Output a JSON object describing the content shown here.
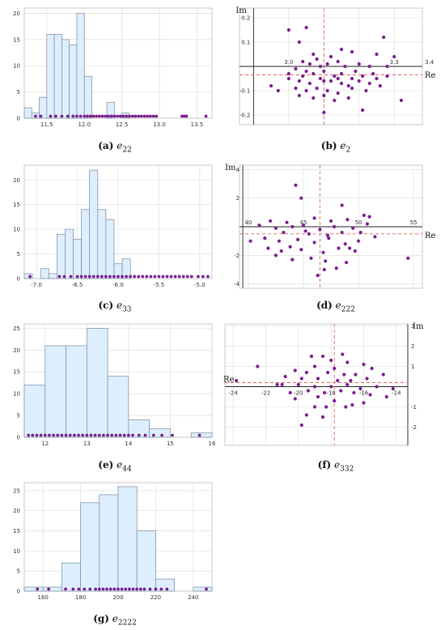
{
  "captions": [
    {
      "letter": "(a)",
      "var": "e",
      "sub": "22"
    },
    {
      "letter": "(b)",
      "var": "e",
      "sub": "2"
    },
    {
      "letter": "(c)",
      "var": "e",
      "sub": "33"
    },
    {
      "letter": "(d)",
      "var": "e",
      "sub": "222"
    },
    {
      "letter": "(e)",
      "var": "e",
      "sub": "44"
    },
    {
      "letter": "(f)",
      "var": "e",
      "sub": "332"
    },
    {
      "letter": "(g)",
      "var": "e",
      "sub": "2222"
    }
  ],
  "chart_data": [
    {
      "id": "a",
      "type": "bar",
      "subtype": "histogram",
      "bin_start": 11.2,
      "bin_width": 0.1,
      "counts": [
        2,
        1,
        4,
        16,
        16,
        15,
        14,
        20,
        8,
        0,
        0,
        3,
        0,
        1
      ],
      "xlim": [
        11.2,
        13.7
      ],
      "ylim": [
        0,
        21
      ],
      "xticks": [
        11.5,
        12.0,
        12.5,
        13.0,
        13.5
      ],
      "xtick_labels": [
        "11.5",
        "12.0",
        "12.5",
        "13.0",
        "13.5"
      ],
      "yticks": [
        0,
        5,
        10,
        15,
        20
      ],
      "xlabel": "",
      "ylabel": "",
      "rug": [
        11.35,
        11.42,
        11.55,
        11.62,
        11.7,
        11.78,
        11.85,
        11.9,
        11.95,
        12.0,
        12.04,
        12.08,
        12.12,
        12.16,
        12.2,
        12.24,
        12.28,
        12.32,
        12.36,
        12.4,
        12.44,
        12.48,
        12.52,
        12.56,
        12.6,
        12.64,
        12.68,
        12.72,
        12.76,
        12.8,
        12.84,
        12.88,
        12.92,
        12.96,
        13.3,
        13.33,
        13.36,
        13.62
      ]
    },
    {
      "id": "b",
      "type": "scatter",
      "xlabel": "Re",
      "ylabel": "Im",
      "xlim": [
        2.86,
        3.38
      ],
      "ylim": [
        -0.24,
        0.24
      ],
      "xticks": [
        3.0,
        3.1,
        3.2,
        3.3,
        3.4
      ],
      "xtick_labels": [
        "3.0",
        "",
        "",
        "3.3",
        "3.4"
      ],
      "yticks": [
        -0.2,
        -0.1,
        0.1,
        0.2
      ],
      "ytick_labels": [
        "-0.2",
        "-0.1",
        "0.1",
        "0.2"
      ],
      "mean_x": 3.1,
      "mean_y": -0.035,
      "points": [
        [
          3.0,
          0.15
        ],
        [
          3.05,
          0.16
        ],
        [
          3.03,
          0.1
        ],
        [
          3.08,
          0.03
        ],
        [
          3.12,
          0.04
        ],
        [
          3.18,
          0.06
        ],
        [
          3.25,
          0.05
        ],
        [
          3.27,
          0.12
        ],
        [
          3.3,
          0.04
        ],
        [
          3.04,
          0.02
        ],
        [
          3.06,
          0.01
        ],
        [
          3.09,
          0.0
        ],
        [
          3.11,
          0.01
        ],
        [
          3.14,
          0.02
        ],
        [
          3.16,
          0.0
        ],
        [
          3.2,
          0.01
        ],
        [
          3.23,
          0.0
        ],
        [
          3.28,
          0.0
        ],
        [
          3.02,
          -0.01
        ],
        [
          3.05,
          -0.02
        ],
        [
          3.07,
          -0.03
        ],
        [
          3.1,
          -0.02
        ],
        [
          3.13,
          -0.04
        ],
        [
          3.15,
          -0.03
        ],
        [
          3.18,
          -0.05
        ],
        [
          3.21,
          -0.04
        ],
        [
          3.24,
          -0.03
        ],
        [
          3.0,
          -0.05
        ],
        [
          3.03,
          -0.06
        ],
        [
          3.06,
          -0.07
        ],
        [
          3.09,
          -0.05
        ],
        [
          3.12,
          -0.06
        ],
        [
          3.15,
          -0.07
        ],
        [
          3.17,
          -0.08
        ],
        [
          3.2,
          -0.06
        ],
        [
          3.23,
          -0.07
        ],
        [
          2.95,
          -0.08
        ],
        [
          2.97,
          -0.1
        ],
        [
          3.02,
          -0.09
        ],
        [
          3.05,
          -0.1
        ],
        [
          3.08,
          -0.09
        ],
        [
          3.11,
          -0.1
        ],
        [
          3.14,
          -0.11
        ],
        [
          3.18,
          -0.09
        ],
        [
          3.22,
          -0.1
        ],
        [
          3.03,
          -0.12
        ],
        [
          3.07,
          -0.13
        ],
        [
          3.1,
          -0.12
        ],
        [
          3.13,
          -0.14
        ],
        [
          3.17,
          -0.13
        ],
        [
          3.1,
          -0.19
        ],
        [
          3.21,
          -0.18
        ],
        [
          3.32,
          -0.14
        ],
        [
          3.26,
          -0.08
        ],
        [
          3.0,
          -0.03
        ],
        [
          3.04,
          -0.04
        ],
        [
          3.1,
          -0.06
        ],
        [
          3.14,
          -0.05
        ],
        [
          3.19,
          -0.02
        ],
        [
          3.25,
          -0.05
        ],
        [
          3.28,
          -0.04
        ],
        [
          3.07,
          0.05
        ],
        [
          3.15,
          0.07
        ]
      ]
    },
    {
      "id": "c",
      "type": "bar",
      "subtype": "histogram",
      "bin_start": -7.15,
      "bin_width": 0.1,
      "counts": [
        1,
        0,
        2,
        1,
        9,
        10,
        8,
        14,
        22,
        14,
        12,
        3,
        4
      ],
      "xlim": [
        -7.15,
        -4.85
      ],
      "ylim": [
        0,
        23
      ],
      "xticks": [
        -7.0,
        -6.5,
        -6.0,
        -5.5,
        -5.0
      ],
      "xtick_labels": [
        "-7.0",
        "-6.5",
        "-6.0",
        "-5.5",
        "-5.0"
      ],
      "yticks": [
        0,
        5,
        10,
        15,
        20
      ],
      "xlabel": "",
      "ylabel": "",
      "rug": [
        -7.08,
        -6.72,
        -6.66,
        -6.58,
        -6.5,
        -6.45,
        -6.4,
        -6.35,
        -6.3,
        -6.25,
        -6.2,
        -6.15,
        -6.1,
        -6.05,
        -6.0,
        -5.95,
        -5.9,
        -5.85,
        -5.8,
        -5.75,
        -5.7,
        -5.65,
        -5.6,
        -5.55,
        -5.5,
        -5.45,
        -5.4,
        -5.35,
        -5.3,
        -5.25,
        -5.2,
        -5.15,
        -5.1,
        -5.02,
        -4.96,
        -4.9
      ]
    },
    {
      "id": "d",
      "type": "scatter",
      "xlabel": "Re",
      "ylabel": "Im",
      "xlim": [
        39.2,
        55.8
      ],
      "ylim": [
        -4.3,
        4.3
      ],
      "xticks": [
        40,
        45,
        50,
        55
      ],
      "xtick_labels": [
        "40",
        "45",
        "50",
        "55"
      ],
      "yticks": [
        -4,
        -2,
        2,
        4
      ],
      "ytick_labels": [
        "-4",
        "-2",
        "2",
        "4"
      ],
      "mean_x": 46.5,
      "mean_y": -0.5,
      "points": [
        [
          44.3,
          2.9
        ],
        [
          44.8,
          2.0
        ],
        [
          48.5,
          1.5
        ],
        [
          50.5,
          0.8
        ],
        [
          51.0,
          0.7
        ],
        [
          42.0,
          0.4
        ],
        [
          43.5,
          0.3
        ],
        [
          46.0,
          0.6
        ],
        [
          47.5,
          0.4
        ],
        [
          49.0,
          0.5
        ],
        [
          41.0,
          0.1
        ],
        [
          42.5,
          -0.1
        ],
        [
          44.0,
          0.0
        ],
        [
          45.0,
          0.1
        ],
        [
          46.5,
          -0.2
        ],
        [
          47.8,
          0.0
        ],
        [
          49.5,
          -0.1
        ],
        [
          50.8,
          0.2
        ],
        [
          43.2,
          -0.4
        ],
        [
          45.5,
          -0.5
        ],
        [
          40.2,
          -1.0
        ],
        [
          41.5,
          -0.8
        ],
        [
          42.8,
          -1.0
        ],
        [
          44.5,
          -0.9
        ],
        [
          46.0,
          -1.1
        ],
        [
          47.3,
          -0.8
        ],
        [
          48.8,
          -1.2
        ],
        [
          50.0,
          -1.0
        ],
        [
          51.5,
          -0.7
        ],
        [
          43.8,
          -1.4
        ],
        [
          41.8,
          -1.5
        ],
        [
          43.0,
          -1.7
        ],
        [
          44.8,
          -1.6
        ],
        [
          46.8,
          -1.8
        ],
        [
          48.2,
          -1.5
        ],
        [
          49.7,
          -1.7
        ],
        [
          45.7,
          -2.2
        ],
        [
          47.0,
          -2.4
        ],
        [
          48.9,
          -2.5
        ],
        [
          44.0,
          -2.3
        ],
        [
          42.5,
          -2.0
        ],
        [
          46.3,
          -3.4
        ],
        [
          46.9,
          -3.0
        ],
        [
          48.0,
          -2.9
        ],
        [
          54.5,
          -2.2
        ],
        [
          45.2,
          -0.3
        ],
        [
          47.2,
          -0.6
        ],
        [
          48.5,
          -0.4
        ],
        [
          49.2,
          -1.5
        ],
        [
          50.2,
          -0.4
        ]
      ]
    },
    {
      "id": "e",
      "type": "bar",
      "subtype": "histogram",
      "bin_start": 11.5,
      "bin_width": 0.5,
      "counts": [
        12,
        21,
        21,
        25,
        14,
        4,
        2,
        0,
        1
      ],
      "xlim": [
        11.5,
        16.0
      ],
      "ylim": [
        0,
        26
      ],
      "xticks": [
        12,
        13,
        14,
        15,
        16
      ],
      "xtick_labels": [
        "12",
        "13",
        "14",
        "15",
        "16"
      ],
      "yticks": [
        0,
        5,
        10,
        15,
        20,
        25
      ],
      "xlabel": "",
      "ylabel": "",
      "rug": [
        11.6,
        11.7,
        11.8,
        11.9,
        12.0,
        12.1,
        12.2,
        12.3,
        12.4,
        12.5,
        12.6,
        12.7,
        12.8,
        12.9,
        13.0,
        13.1,
        13.2,
        13.3,
        13.4,
        13.5,
        13.6,
        13.7,
        13.8,
        13.9,
        14.0,
        14.1,
        14.25,
        14.4,
        14.6,
        14.8,
        15.05,
        15.7
      ]
    },
    {
      "id": "f",
      "type": "scatter",
      "xlabel": "Re",
      "ylabel": "Im",
      "xlim": [
        -24.5,
        -13.3
      ],
      "ylim": [
        -2.9,
        3.1
      ],
      "xticks": [
        -24,
        -22,
        -20,
        -18,
        -16,
        -14
      ],
      "xtick_labels": [
        "-24",
        "-22",
        "-20",
        "-18",
        "-16",
        "-14"
      ],
      "yticks": [
        -2,
        -1,
        1,
        2,
        3
      ],
      "ytick_labels": [
        "-2",
        "-1",
        "1",
        "2",
        "3"
      ],
      "mean_x": -17.8,
      "mean_y": 0.2,
      "points": [
        [
          -19.2,
          1.5
        ],
        [
          -18.5,
          1.5
        ],
        [
          -17.3,
          1.6
        ],
        [
          -18.0,
          1.3
        ],
        [
          -17.0,
          1.2
        ],
        [
          -16.0,
          1.1
        ],
        [
          -22.5,
          1.0
        ],
        [
          -19.0,
          1.0
        ],
        [
          -17.8,
          0.9
        ],
        [
          -15.5,
          0.9
        ],
        [
          -20.2,
          0.8
        ],
        [
          -19.5,
          0.7
        ],
        [
          -18.2,
          0.7
        ],
        [
          -17.2,
          0.6
        ],
        [
          -16.5,
          0.6
        ],
        [
          -14.8,
          0.6
        ],
        [
          -20.8,
          0.5
        ],
        [
          -19.8,
          0.4
        ],
        [
          -18.8,
          0.4
        ],
        [
          -17.6,
          0.3
        ],
        [
          -16.8,
          0.3
        ],
        [
          -15.8,
          0.4
        ],
        [
          -23.8,
          0.3
        ],
        [
          -21.0,
          0.1
        ],
        [
          -20.0,
          0.1
        ],
        [
          -19.0,
          0.0
        ],
        [
          -18.0,
          0.0
        ],
        [
          -17.0,
          0.1
        ],
        [
          -16.2,
          -0.1
        ],
        [
          -15.2,
          0.0
        ],
        [
          -14.2,
          -0.1
        ],
        [
          -20.5,
          -0.3
        ],
        [
          -19.4,
          -0.2
        ],
        [
          -18.4,
          -0.3
        ],
        [
          -17.4,
          -0.2
        ],
        [
          -16.6,
          -0.3
        ],
        [
          -15.6,
          -0.4
        ],
        [
          -14.6,
          -0.5
        ],
        [
          -20.2,
          -0.6
        ],
        [
          -18.8,
          -0.5
        ],
        [
          -17.8,
          -0.7
        ],
        [
          -16.0,
          -0.8
        ],
        [
          -18.3,
          -1.0
        ],
        [
          -17.1,
          -1.0
        ],
        [
          -19.0,
          -1.0
        ],
        [
          -18.5,
          -1.5
        ],
        [
          -19.5,
          -1.4
        ],
        [
          -19.8,
          -1.9
        ],
        [
          -16.7,
          -0.9
        ],
        [
          -21.3,
          0.1
        ]
      ]
    },
    {
      "id": "g",
      "type": "bar",
      "subtype": "histogram",
      "bin_start": 150,
      "bin_width": 10,
      "counts": [
        1,
        1,
        7,
        22,
        24,
        26,
        15,
        3,
        0,
        1
      ],
      "xlim": [
        150,
        250
      ],
      "ylim": [
        0,
        27
      ],
      "xticks": [
        160,
        180,
        200,
        220,
        240
      ],
      "xtick_labels": [
        "160",
        "180",
        "200",
        "220",
        "240"
      ],
      "yticks": [
        0,
        5,
        10,
        15,
        20,
        25
      ],
      "xlabel": "",
      "ylabel": "",
      "rug": [
        157,
        163,
        172,
        176,
        179,
        182,
        185,
        188,
        190,
        192,
        194,
        196,
        198,
        200,
        202,
        204,
        206,
        208,
        210,
        212,
        214,
        217,
        220,
        223,
        226,
        247
      ]
    }
  ]
}
